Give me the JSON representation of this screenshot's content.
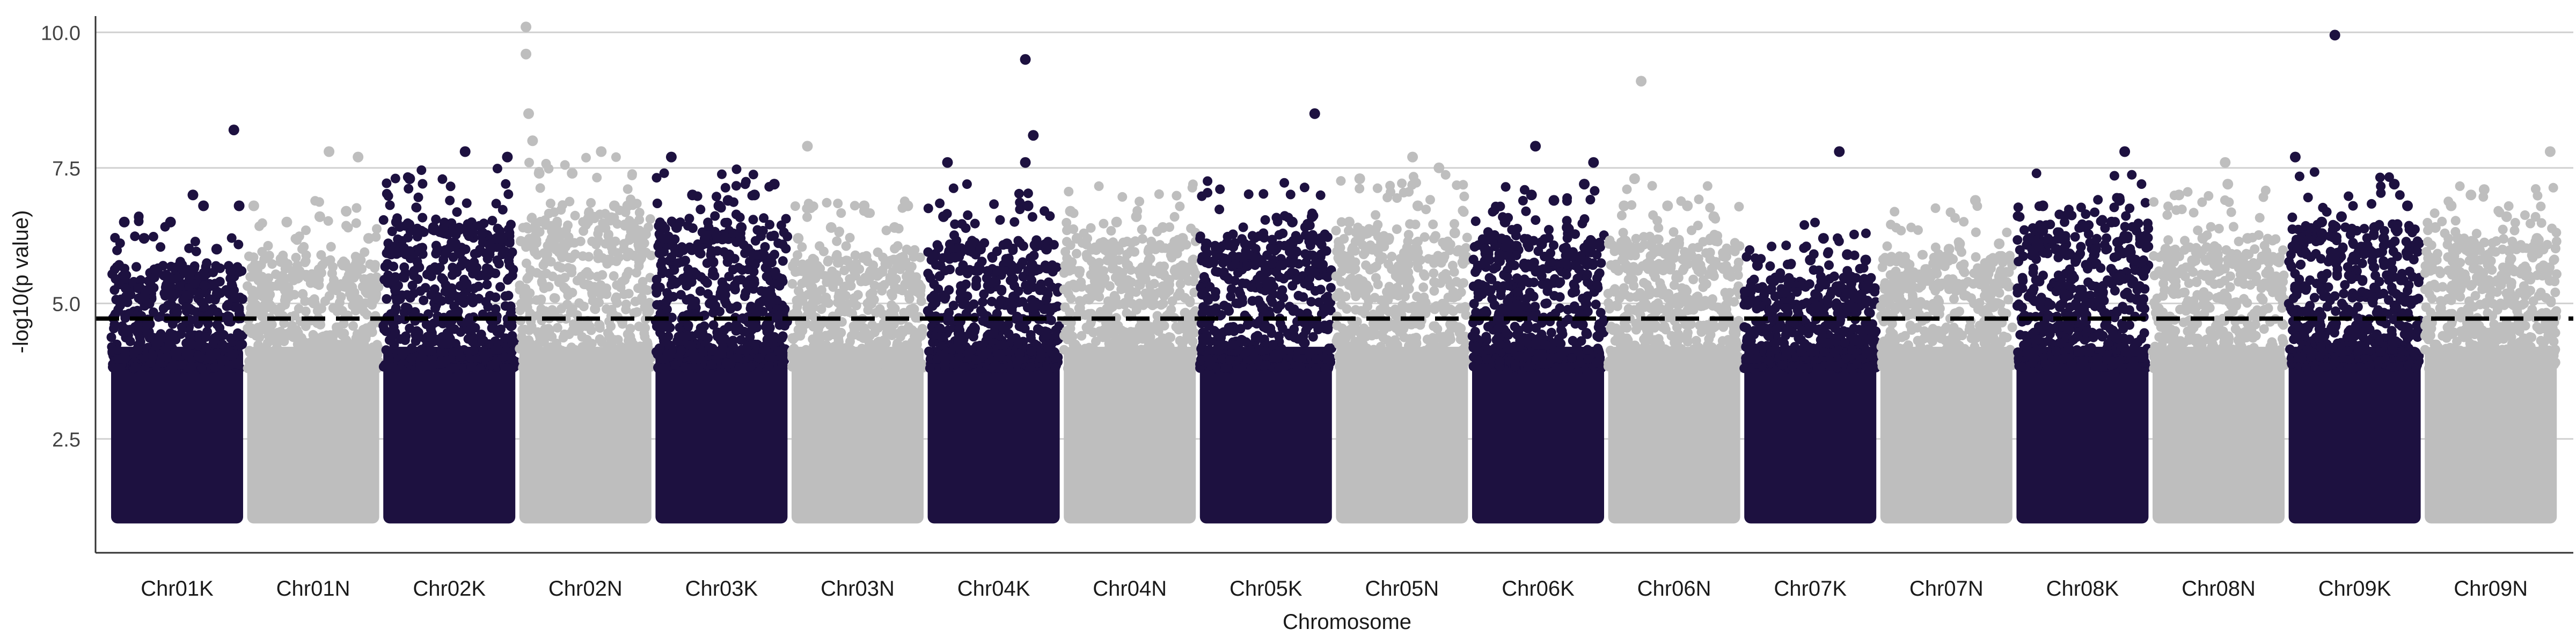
{
  "chart_data": {
    "type": "scatter",
    "title": "",
    "xlabel": "Chromosome",
    "ylabel": "-log10(p value)",
    "ylim": [
      0.4,
      10.3
    ],
    "yticks": [
      2.5,
      5.0,
      7.5,
      10.0
    ],
    "ytick_labels": [
      "2.5",
      "5.0",
      "7.5",
      "10.0"
    ],
    "grid": "horizontal major gridlines",
    "legend": "none",
    "colors": {
      "dark": "#1d1140",
      "light": "#bebebe",
      "threshold": "#000000",
      "grid": "#d0d0d0"
    },
    "threshold": {
      "value": 4.72,
      "style": "dashed"
    },
    "baseline_min": 1.0,
    "categories": [
      "Chr01K",
      "Chr01N",
      "Chr02K",
      "Chr02N",
      "Chr03K",
      "Chr03N",
      "Chr04K",
      "Chr04N",
      "Chr05K",
      "Chr05N",
      "Chr06K",
      "Chr06N",
      "Chr07K",
      "Chr07N",
      "Chr08K",
      "Chr08N",
      "Chr09K",
      "Chr09N"
    ],
    "series": [
      {
        "category": "Chr01K",
        "color": "dark",
        "band_top": 4.8,
        "top_points": [
          [
            0.1,
            6.5
          ],
          [
            0.25,
            6.2
          ],
          [
            0.45,
            6.5
          ],
          [
            0.62,
            7.0
          ],
          [
            0.7,
            6.8
          ],
          [
            0.8,
            6.0
          ],
          [
            0.93,
            8.2
          ],
          [
            0.97,
            6.8
          ]
        ]
      },
      {
        "category": "Chr01N",
        "color": "light",
        "band_top": 5.0,
        "top_points": [
          [
            0.05,
            6.8
          ],
          [
            0.3,
            6.5
          ],
          [
            0.55,
            6.6
          ],
          [
            0.62,
            7.8
          ],
          [
            0.75,
            6.7
          ],
          [
            0.84,
            7.7
          ],
          [
            0.92,
            6.2
          ]
        ]
      },
      {
        "category": "Chr02K",
        "color": "dark",
        "band_top": 5.6,
        "top_points": [
          [
            0.1,
            6.5
          ],
          [
            0.2,
            7.3
          ],
          [
            0.38,
            6.4
          ],
          [
            0.62,
            7.8
          ],
          [
            0.75,
            6.3
          ],
          [
            0.86,
            6.2
          ],
          [
            0.94,
            7.7
          ]
        ]
      },
      {
        "category": "Chr02N",
        "color": "light",
        "band_top": 5.8,
        "top_points": [
          [
            0.05,
            10.1
          ],
          [
            0.05,
            9.6
          ],
          [
            0.07,
            8.5
          ],
          [
            0.1,
            8.0
          ],
          [
            0.15,
            7.4
          ],
          [
            0.4,
            7.4
          ],
          [
            0.62,
            7.8
          ],
          [
            0.72,
            6.8
          ],
          [
            0.82,
            6.8
          ]
        ]
      },
      {
        "category": "Chr03K",
        "color": "dark",
        "band_top": 5.6,
        "top_points": [
          [
            0.08,
            6.2
          ],
          [
            0.16,
            6.4
          ],
          [
            0.12,
            7.7
          ],
          [
            0.28,
            7.0
          ],
          [
            0.48,
            6.8
          ],
          [
            0.55,
            6.9
          ],
          [
            0.65,
            6.4
          ],
          [
            0.75,
            7.0
          ],
          [
            0.9,
            7.2
          ]
        ]
      },
      {
        "category": "Chr03N",
        "color": "light",
        "band_top": 5.0,
        "top_points": [
          [
            0.05,
            6.2
          ],
          [
            0.12,
            7.9
          ],
          [
            0.3,
            6.4
          ],
          [
            0.55,
            6.8
          ],
          [
            0.78,
            6.4
          ],
          [
            0.88,
            6.8
          ]
        ]
      },
      {
        "category": "Chr04K",
        "color": "dark",
        "band_top": 5.3,
        "top_points": [
          [
            0.12,
            6.6
          ],
          [
            0.15,
            7.6
          ],
          [
            0.4,
            6.0
          ],
          [
            0.6,
            6.1
          ],
          [
            0.74,
            7.6
          ],
          [
            0.74,
            9.5
          ],
          [
            0.8,
            8.1
          ],
          [
            0.76,
            6.8
          ],
          [
            0.9,
            6.0
          ]
        ]
      },
      {
        "category": "Chr04N",
        "color": "light",
        "band_top": 5.3,
        "top_points": [
          [
            0.05,
            6.7
          ],
          [
            0.1,
            6.2
          ],
          [
            0.4,
            6.5
          ],
          [
            0.55,
            6.6
          ],
          [
            0.75,
            6.4
          ],
          [
            0.9,
            6.2
          ]
        ]
      },
      {
        "category": "Chr05K",
        "color": "dark",
        "band_top": 5.4,
        "top_points": [
          [
            0.05,
            6.1
          ],
          [
            0.2,
            5.8
          ],
          [
            0.45,
            5.8
          ],
          [
            0.7,
            6.5
          ],
          [
            0.85,
            6.6
          ],
          [
            0.87,
            8.5
          ],
          [
            0.92,
            6.2
          ]
        ]
      },
      {
        "category": "Chr05N",
        "color": "light",
        "band_top": 5.5,
        "top_points": [
          [
            0.1,
            6.5
          ],
          [
            0.18,
            7.3
          ],
          [
            0.4,
            6.2
          ],
          [
            0.58,
            7.7
          ],
          [
            0.62,
            6.8
          ],
          [
            0.78,
            7.5
          ],
          [
            0.9,
            6.3
          ]
        ]
      },
      {
        "category": "Chr06K",
        "color": "dark",
        "band_top": 5.4,
        "top_points": [
          [
            0.1,
            6.0
          ],
          [
            0.25,
            6.5
          ],
          [
            0.45,
            7.0
          ],
          [
            0.48,
            7.9
          ],
          [
            0.62,
            6.9
          ],
          [
            0.72,
            6.4
          ],
          [
            0.85,
            7.2
          ],
          [
            0.92,
            7.6
          ]
        ]
      },
      {
        "category": "Chr06N",
        "color": "light",
        "band_top": 5.3,
        "top_points": [
          [
            0.12,
            6.8
          ],
          [
            0.2,
            7.3
          ],
          [
            0.25,
            9.1
          ],
          [
            0.45,
            6.8
          ],
          [
            0.6,
            6.8
          ],
          [
            0.8,
            6.6
          ]
        ]
      },
      {
        "category": "Chr07K",
        "color": "dark",
        "band_top": 4.6,
        "top_points": [
          [
            0.1,
            5.7
          ],
          [
            0.3,
            5.2
          ],
          [
            0.5,
            5.8
          ],
          [
            0.6,
            6.2
          ],
          [
            0.78,
            5.9
          ],
          [
            0.72,
            7.8
          ],
          [
            0.92,
            5.8
          ]
        ]
      },
      {
        "category": "Chr07N",
        "color": "light",
        "band_top": 5.0,
        "top_points": [
          [
            0.1,
            5.2
          ],
          [
            0.3,
            5.5
          ],
          [
            0.52,
            6.0
          ],
          [
            0.6,
            6.1
          ],
          [
            0.72,
            6.9
          ],
          [
            0.9,
            6.1
          ]
        ]
      },
      {
        "category": "Chr08K",
        "color": "dark",
        "band_top": 5.6,
        "top_points": [
          [
            0.1,
            6.2
          ],
          [
            0.2,
            6.8
          ],
          [
            0.3,
            6.0
          ],
          [
            0.45,
            5.8
          ],
          [
            0.6,
            6.0
          ],
          [
            0.72,
            6.5
          ],
          [
            0.78,
            6.9
          ],
          [
            0.82,
            7.8
          ],
          [
            0.9,
            5.8
          ]
        ]
      },
      {
        "category": "Chr08N",
        "color": "light",
        "band_top": 5.2,
        "top_points": [
          [
            0.1,
            6.0
          ],
          [
            0.2,
            7.0
          ],
          [
            0.38,
            6.2
          ],
          [
            0.55,
            7.6
          ],
          [
            0.57,
            7.2
          ],
          [
            0.72,
            6.2
          ],
          [
            0.88,
            5.6
          ]
        ]
      },
      {
        "category": "Chr09K",
        "color": "dark",
        "band_top": 5.6,
        "top_points": [
          [
            0.05,
            7.7
          ],
          [
            0.35,
            9.95
          ],
          [
            0.25,
            6.5
          ],
          [
            0.4,
            6.6
          ],
          [
            0.65,
            6.4
          ],
          [
            0.72,
            6.2
          ],
          [
            0.8,
            7.2
          ],
          [
            0.9,
            6.8
          ]
        ]
      },
      {
        "category": "Chr09N",
        "color": "light",
        "band_top": 5.3,
        "top_points": [
          [
            0.08,
            6.4
          ],
          [
            0.2,
            6.8
          ],
          [
            0.25,
            6.2
          ],
          [
            0.35,
            7.0
          ],
          [
            0.45,
            7.1
          ],
          [
            0.62,
            6.6
          ],
          [
            0.85,
            6.2
          ],
          [
            0.95,
            7.8
          ]
        ]
      }
    ]
  }
}
